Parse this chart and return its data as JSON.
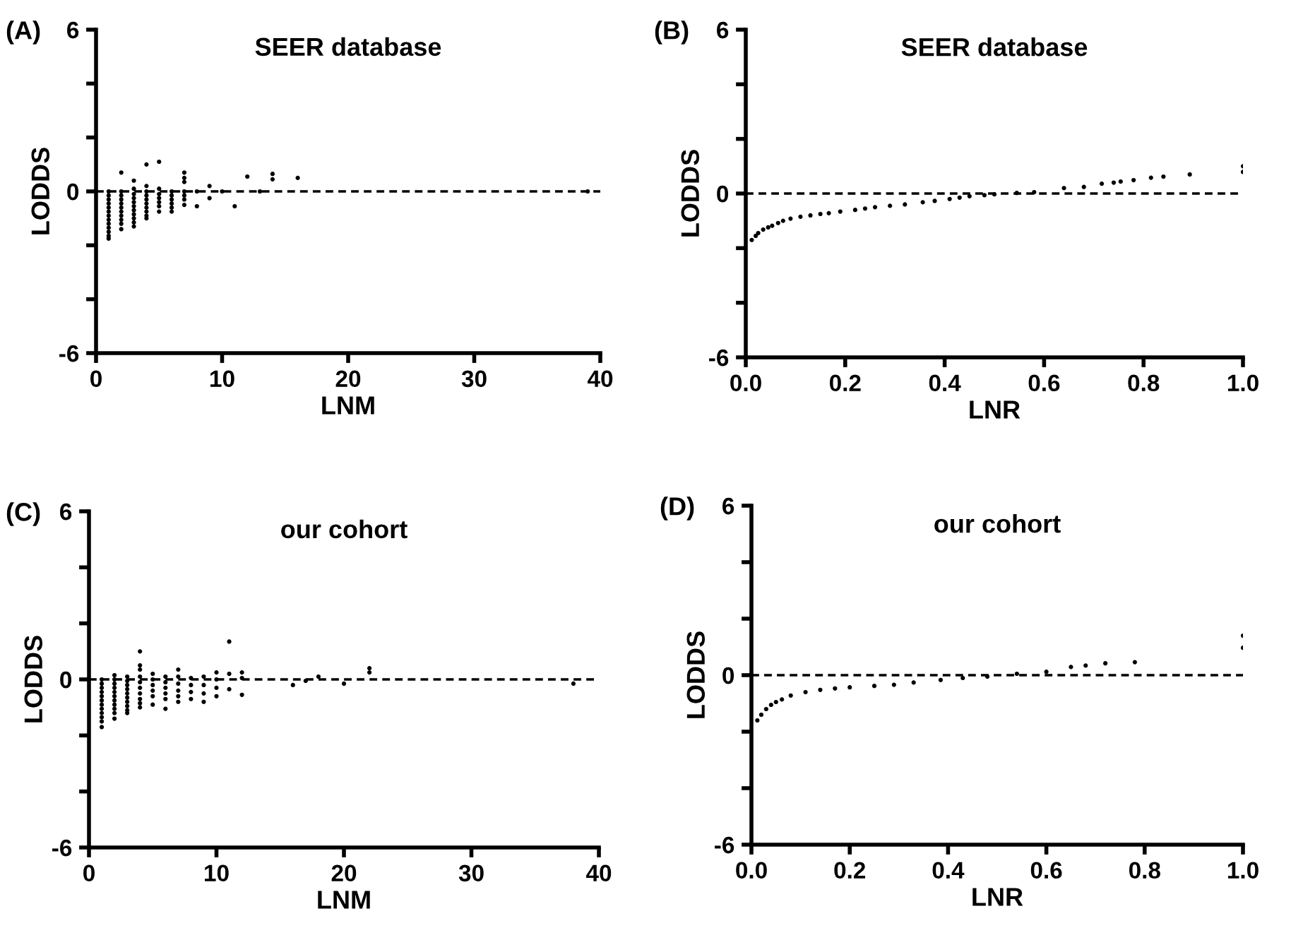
{
  "chart_data": [
    {
      "type": "scatter",
      "title": "SEER database",
      "xlabel": "LNM",
      "ylabel": "LODDS",
      "annotations": [
        "(A)"
      ],
      "marker": "circle",
      "grid": false,
      "color": "#000000",
      "x": [
        1,
        1,
        1,
        1,
        1,
        1,
        1,
        1,
        1,
        1,
        1,
        1,
        1,
        2,
        2,
        2,
        2,
        2,
        2,
        2,
        2,
        2,
        2,
        2,
        3,
        3,
        3,
        3,
        3,
        3,
        3,
        3,
        3,
        3,
        3,
        4,
        4,
        4,
        4,
        4,
        4,
        4,
        4,
        4,
        4,
        5,
        5,
        5,
        5,
        5,
        5,
        5,
        6,
        6,
        6,
        6,
        6,
        6,
        7,
        7,
        7,
        7,
        7,
        7,
        7,
        8,
        8,
        9,
        9,
        10,
        11,
        12,
        13,
        14,
        14,
        16,
        39
      ],
      "values": [
        0,
        -0.15,
        -0.3,
        -0.45,
        -0.6,
        -0.75,
        -0.9,
        -1.05,
        -1.2,
        -1.35,
        -1.5,
        -1.65,
        -1.75,
        0.7,
        0,
        -0.15,
        -0.3,
        -0.45,
        -0.6,
        -0.75,
        -0.9,
        -1.05,
        -1.2,
        -1.4,
        0.4,
        0.1,
        -0.1,
        -0.25,
        -0.4,
        -0.55,
        -0.7,
        -0.85,
        -1.0,
        -1.15,
        -1.3,
        1.0,
        0.2,
        0,
        -0.15,
        -0.3,
        -0.45,
        -0.6,
        -0.75,
        -0.9,
        -1.0,
        1.1,
        0.1,
        -0.1,
        -0.25,
        -0.4,
        -0.55,
        -0.75,
        0,
        -0.15,
        -0.3,
        -0.45,
        -0.6,
        -0.75,
        0.7,
        0.5,
        0.35,
        0,
        -0.15,
        -0.3,
        -0.5,
        0,
        -0.55,
        0.2,
        -0.25,
        0,
        -0.55,
        0.55,
        0,
        0.65,
        0.45,
        0.5,
        0
      ],
      "xlim": [
        0,
        40
      ],
      "xticks": [
        0,
        10,
        20,
        30,
        40
      ],
      "ylim": [
        -6,
        6
      ],
      "yticks": [
        6,
        {
          "value": 4,
          "label": null
        },
        {
          "value": 2,
          "label": null
        },
        0,
        {
          "value": -2,
          "label": null
        },
        {
          "value": -4,
          "label": null
        },
        -6
      ],
      "ref_lines": [
        {
          "axis": "y",
          "value": 0,
          "line_style": "dashed",
          "color": "#000000"
        }
      ]
    },
    {
      "type": "scatter",
      "title": "SEER database",
      "xlabel": "LNR",
      "ylabel": "LODDS",
      "annotations": [
        "(B)"
      ],
      "marker": "circle",
      "grid": false,
      "color": "#000000",
      "x": [
        0.012,
        0.02,
        0.025,
        0.035,
        0.045,
        0.053,
        0.065,
        0.075,
        0.09,
        0.11,
        0.13,
        0.15,
        0.167,
        0.19,
        0.22,
        0.24,
        0.26,
        0.29,
        0.32,
        0.356,
        0.38,
        0.41,
        0.43,
        0.45,
        0.48,
        0.5,
        0.545,
        0.58,
        0.64,
        0.68,
        0.716,
        0.74,
        0.754,
        0.78,
        0.815,
        0.84,
        0.893,
        1.0,
        1.0
      ],
      "values": [
        -1.7,
        -1.55,
        -1.45,
        -1.32,
        -1.24,
        -1.18,
        -1.08,
        -1.0,
        -0.92,
        -0.85,
        -0.8,
        -0.75,
        -0.72,
        -0.66,
        -0.6,
        -0.55,
        -0.5,
        -0.45,
        -0.4,
        -0.32,
        -0.27,
        -0.2,
        -0.15,
        -0.1,
        -0.06,
        -0.03,
        0.02,
        0.05,
        0.2,
        0.24,
        0.36,
        0.4,
        0.44,
        0.49,
        0.58,
        0.62,
        0.7,
        0.79,
        1.0
      ],
      "xlim": [
        0,
        1
      ],
      "xticks": [
        {
          "value": 0,
          "label": "0.0"
        },
        {
          "value": 0.2,
          "label": "0.2"
        },
        {
          "value": 0.4,
          "label": "0.4"
        },
        {
          "value": 0.6,
          "label": "0.6"
        },
        {
          "value": 0.8,
          "label": "0.8"
        },
        {
          "value": 1,
          "label": "1.0"
        }
      ],
      "ylim": [
        -6,
        6
      ],
      "yticks": [
        6,
        {
          "value": 4,
          "label": null
        },
        {
          "value": 2,
          "label": null
        },
        0,
        {
          "value": -2,
          "label": null
        },
        {
          "value": -4,
          "label": null
        },
        -6
      ],
      "ref_lines": [
        {
          "axis": "y",
          "value": 0,
          "line_style": "dashed",
          "color": "#000000"
        }
      ]
    },
    {
      "type": "scatter",
      "title": "our cohort",
      "xlabel": "LNM",
      "ylabel": "LODDS",
      "annotations": [
        "(C)"
      ],
      "marker": "circle",
      "grid": false,
      "color": "#000000",
      "x": [
        1,
        1,
        1,
        1,
        1,
        1,
        1,
        1,
        1,
        1,
        1,
        1,
        2,
        2,
        2,
        2,
        2,
        2,
        2,
        2,
        2,
        2,
        2,
        3,
        3,
        3,
        3,
        3,
        3,
        3,
        3,
        3,
        3,
        4,
        4,
        4,
        4,
        4,
        4,
        4,
        4,
        4,
        4,
        5,
        5,
        5,
        5,
        5,
        5,
        6,
        6,
        6,
        6,
        6,
        6,
        7,
        7,
        7,
        7,
        7,
        7,
        8,
        8,
        8,
        8,
        9,
        9,
        9,
        9,
        10,
        10,
        10,
        10,
        11,
        11,
        11,
        12,
        12,
        12,
        16,
        17,
        18,
        20,
        22,
        22,
        38
      ],
      "values": [
        0,
        -0.15,
        -0.3,
        -0.45,
        -0.6,
        -0.75,
        -0.9,
        -1.05,
        -1.2,
        -1.35,
        -1.5,
        -1.7,
        0.15,
        0,
        -0.15,
        -0.3,
        -0.45,
        -0.6,
        -0.75,
        -0.9,
        -1.05,
        -1.2,
        -1.4,
        0.1,
        -0.05,
        -0.2,
        -0.35,
        -0.5,
        -0.65,
        -0.8,
        -0.95,
        -1.1,
        -1.2,
        1.0,
        0.5,
        0.35,
        0.1,
        -0.1,
        -0.3,
        -0.5,
        -0.7,
        -0.85,
        -1.0,
        0.2,
        0,
        -0.2,
        -0.4,
        -0.6,
        -0.9,
        0.1,
        -0.1,
        -0.3,
        -0.5,
        -0.7,
        -1.05,
        0.35,
        0.1,
        -0.15,
        -0.4,
        -0.6,
        -0.8,
        0.05,
        -0.2,
        -0.45,
        -0.7,
        0.1,
        -0.2,
        -0.5,
        -0.8,
        0.25,
        0,
        -0.3,
        -0.6,
        1.35,
        0.2,
        -0.35,
        0.25,
        0.05,
        -0.55,
        -0.2,
        -0.05,
        0.1,
        -0.15,
        0.4,
        0.25,
        -0.15
      ],
      "xlim": [
        0,
        40
      ],
      "xticks": [
        0,
        10,
        20,
        30,
        40
      ],
      "ylim": [
        -6,
        6
      ],
      "yticks": [
        6,
        {
          "value": 4,
          "label": null
        },
        {
          "value": 2,
          "label": null
        },
        0,
        {
          "value": -2,
          "label": null
        },
        {
          "value": -4,
          "label": null
        },
        -6
      ],
      "ref_lines": [
        {
          "axis": "y",
          "value": 0,
          "line_style": "dashed",
          "color": "#000000"
        }
      ]
    },
    {
      "type": "scatter",
      "title": "our cohort",
      "xlabel": "LNR",
      "ylabel": "LODDS",
      "annotations": [
        "(D)"
      ],
      "marker": "circle",
      "grid": false,
      "color": "#000000",
      "x": [
        0.012,
        0.02,
        0.03,
        0.04,
        0.05,
        0.062,
        0.08,
        0.11,
        0.14,
        0.17,
        0.2,
        0.25,
        0.29,
        0.33,
        0.385,
        0.43,
        0.48,
        0.54,
        0.6,
        0.65,
        0.68,
        0.72,
        0.78,
        1.0,
        1.0
      ],
      "values": [
        -1.6,
        -1.4,
        -1.2,
        -1.05,
        -0.95,
        -0.86,
        -0.72,
        -0.6,
        -0.52,
        -0.47,
        -0.43,
        -0.38,
        -0.34,
        -0.26,
        -0.17,
        -0.1,
        -0.05,
        0.05,
        0.12,
        0.29,
        0.34,
        0.42,
        0.46,
        0.97,
        1.4
      ],
      "xlim": [
        0,
        1
      ],
      "xticks": [
        {
          "value": 0,
          "label": "0.0"
        },
        {
          "value": 0.2,
          "label": "0.2"
        },
        {
          "value": 0.4,
          "label": "0.4"
        },
        {
          "value": 0.6,
          "label": "0.6"
        },
        {
          "value": 0.8,
          "label": "0.8"
        },
        {
          "value": 1,
          "label": "1.0"
        }
      ],
      "ylim": [
        -6,
        6
      ],
      "yticks": [
        6,
        {
          "value": 4,
          "label": null
        },
        {
          "value": 2,
          "label": null
        },
        0,
        {
          "value": -2,
          "label": null
        },
        {
          "value": -4,
          "label": null
        },
        -6
      ],
      "ref_lines": [
        {
          "axis": "y",
          "value": 0,
          "line_style": "dashed",
          "color": "#000000"
        }
      ]
    }
  ]
}
